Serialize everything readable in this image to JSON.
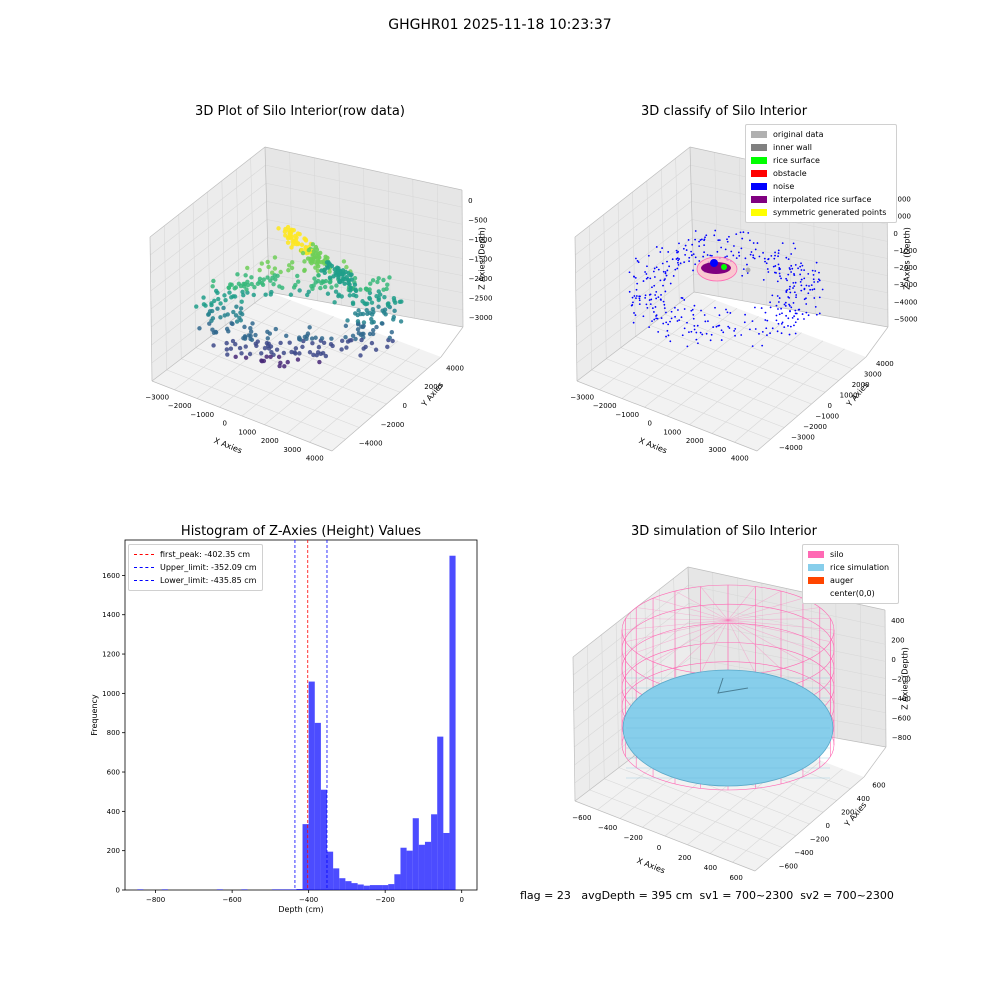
{
  "suptitle": "GHGHR01 2025-11-18 10:23:37",
  "footer": "flag = 23   avgDepth = 395 cm  sv1 = 700~2300  sv2 = 700~2300",
  "chart_data": [
    {
      "type": "scatter",
      "title": "3D Plot of Silo Interior(row data)",
      "xlabel": "X Axies",
      "ylabel": "Y Axies",
      "zlabel": "Z Axies (Depth)",
      "x_ticks": [
        "−3000",
        "−2000",
        "−1000",
        "0",
        "1000",
        "2000",
        "3000",
        "4000"
      ],
      "y_ticks": [
        "−4000",
        "−2000",
        "0",
        "2000",
        "4000"
      ],
      "z_ticks": [
        "0",
        "−500",
        "−1000",
        "−1500",
        "−2000",
        "−2500",
        "−3000"
      ],
      "xlim": [
        -3300,
        4300
      ],
      "ylim": [
        -4300,
        4300
      ],
      "zlim": [
        -3400,
        200
      ],
      "colormap": "viridis"
    },
    {
      "type": "scatter",
      "title": "3D classify of Silo Interior",
      "xlabel": "X Axies",
      "ylabel": "Y Axies",
      "zlabel": "Z Axies (Depth)",
      "x_ticks": [
        "−3000",
        "−2000",
        "−1000",
        "0",
        "1000",
        "2000",
        "3000",
        "4000"
      ],
      "y_ticks": [
        "−4000",
        "−3000",
        "−2000",
        "−1000",
        "0",
        "1000",
        "2000",
        "3000",
        "4000"
      ],
      "z_ticks": [
        "2000",
        "1000",
        "0",
        "−1000",
        "−2000",
        "−3000",
        "−4000",
        "−5000"
      ],
      "xlim": [
        -3300,
        4300
      ],
      "ylim": [
        -4300,
        4300
      ],
      "zlim": [
        -5600,
        2400
      ],
      "legend": [
        {
          "label": "original data",
          "color": "#b0b0b0"
        },
        {
          "label": "inner wall",
          "color": "#808080"
        },
        {
          "label": "rice surface",
          "color": "#00ff00"
        },
        {
          "label": "obstacle",
          "color": "#ff0000"
        },
        {
          "label": "noise",
          "color": "#0000ff"
        },
        {
          "label": "interpolated rice surface",
          "color": "#800080"
        },
        {
          "label": "symmetric generated points",
          "color": "#ffff00"
        }
      ]
    },
    {
      "type": "bar",
      "title": "Histogram of Z-Axies (Height) Values",
      "xlabel": "Depth (cm)",
      "ylabel": "Frequency",
      "xlim": [
        -880,
        40
      ],
      "ylim": [
        0,
        1780
      ],
      "x_ticks": [
        -800,
        -600,
        -400,
        -200,
        0
      ],
      "y_ticks": [
        0,
        200,
        400,
        600,
        800,
        1000,
        1200,
        1400,
        1600
      ],
      "bin_width": 16,
      "bin_starts": [
        -848,
        -784,
        -640,
        -576,
        -496,
        -480,
        -464,
        -448,
        -432,
        -416,
        -400,
        -384,
        -368,
        -352,
        -336,
        -320,
        -304,
        -288,
        -272,
        -256,
        -240,
        -224,
        -208,
        -192,
        -176,
        -160,
        -144,
        -128,
        -112,
        -96,
        -80,
        -64,
        -48,
        -32,
        -16
      ],
      "values": [
        3,
        3,
        3,
        3,
        3,
        3,
        3,
        3,
        5,
        335,
        1060,
        850,
        510,
        195,
        110,
        60,
        45,
        35,
        28,
        22,
        25,
        25,
        25,
        30,
        80,
        215,
        200,
        365,
        230,
        245,
        385,
        780,
        290,
        1700,
        0
      ],
      "bar_color": "#0000ff",
      "vlines": [
        {
          "label": "first_peak: -402.35 cm",
          "x": -402.35,
          "color": "#ff0000"
        },
        {
          "label": "Upper_limit: -352.09 cm",
          "x": -352.09,
          "color": "#0000ff"
        },
        {
          "label": "Lower_limit: -435.85 cm",
          "x": -435.85,
          "color": "#0000ff"
        }
      ]
    },
    {
      "type": "surface",
      "title": "3D simulation of Silo Interior",
      "xlabel": "X Axies",
      "ylabel": "Y Axies",
      "zlabel": "Z Axies (Depth)",
      "x_ticks": [
        "−600",
        "−400",
        "−200",
        "0",
        "200",
        "400",
        "600"
      ],
      "y_ticks": [
        "−600",
        "−400",
        "−200",
        "0",
        "200",
        "400",
        "600"
      ],
      "z_ticks": [
        "400",
        "200",
        "0",
        "−200",
        "−400",
        "−600",
        "−800"
      ],
      "xlim": [
        -700,
        700
      ],
      "ylim": [
        -700,
        700
      ],
      "zlim": [
        -950,
        500
      ],
      "legend": [
        {
          "label": "silo",
          "color": "#ff69b4"
        },
        {
          "label": "rice simulation",
          "color": "#87ceeb"
        },
        {
          "label": "auger",
          "color": "#ff4500"
        },
        {
          "label": "center(0,0)",
          "color": ""
        }
      ]
    }
  ]
}
